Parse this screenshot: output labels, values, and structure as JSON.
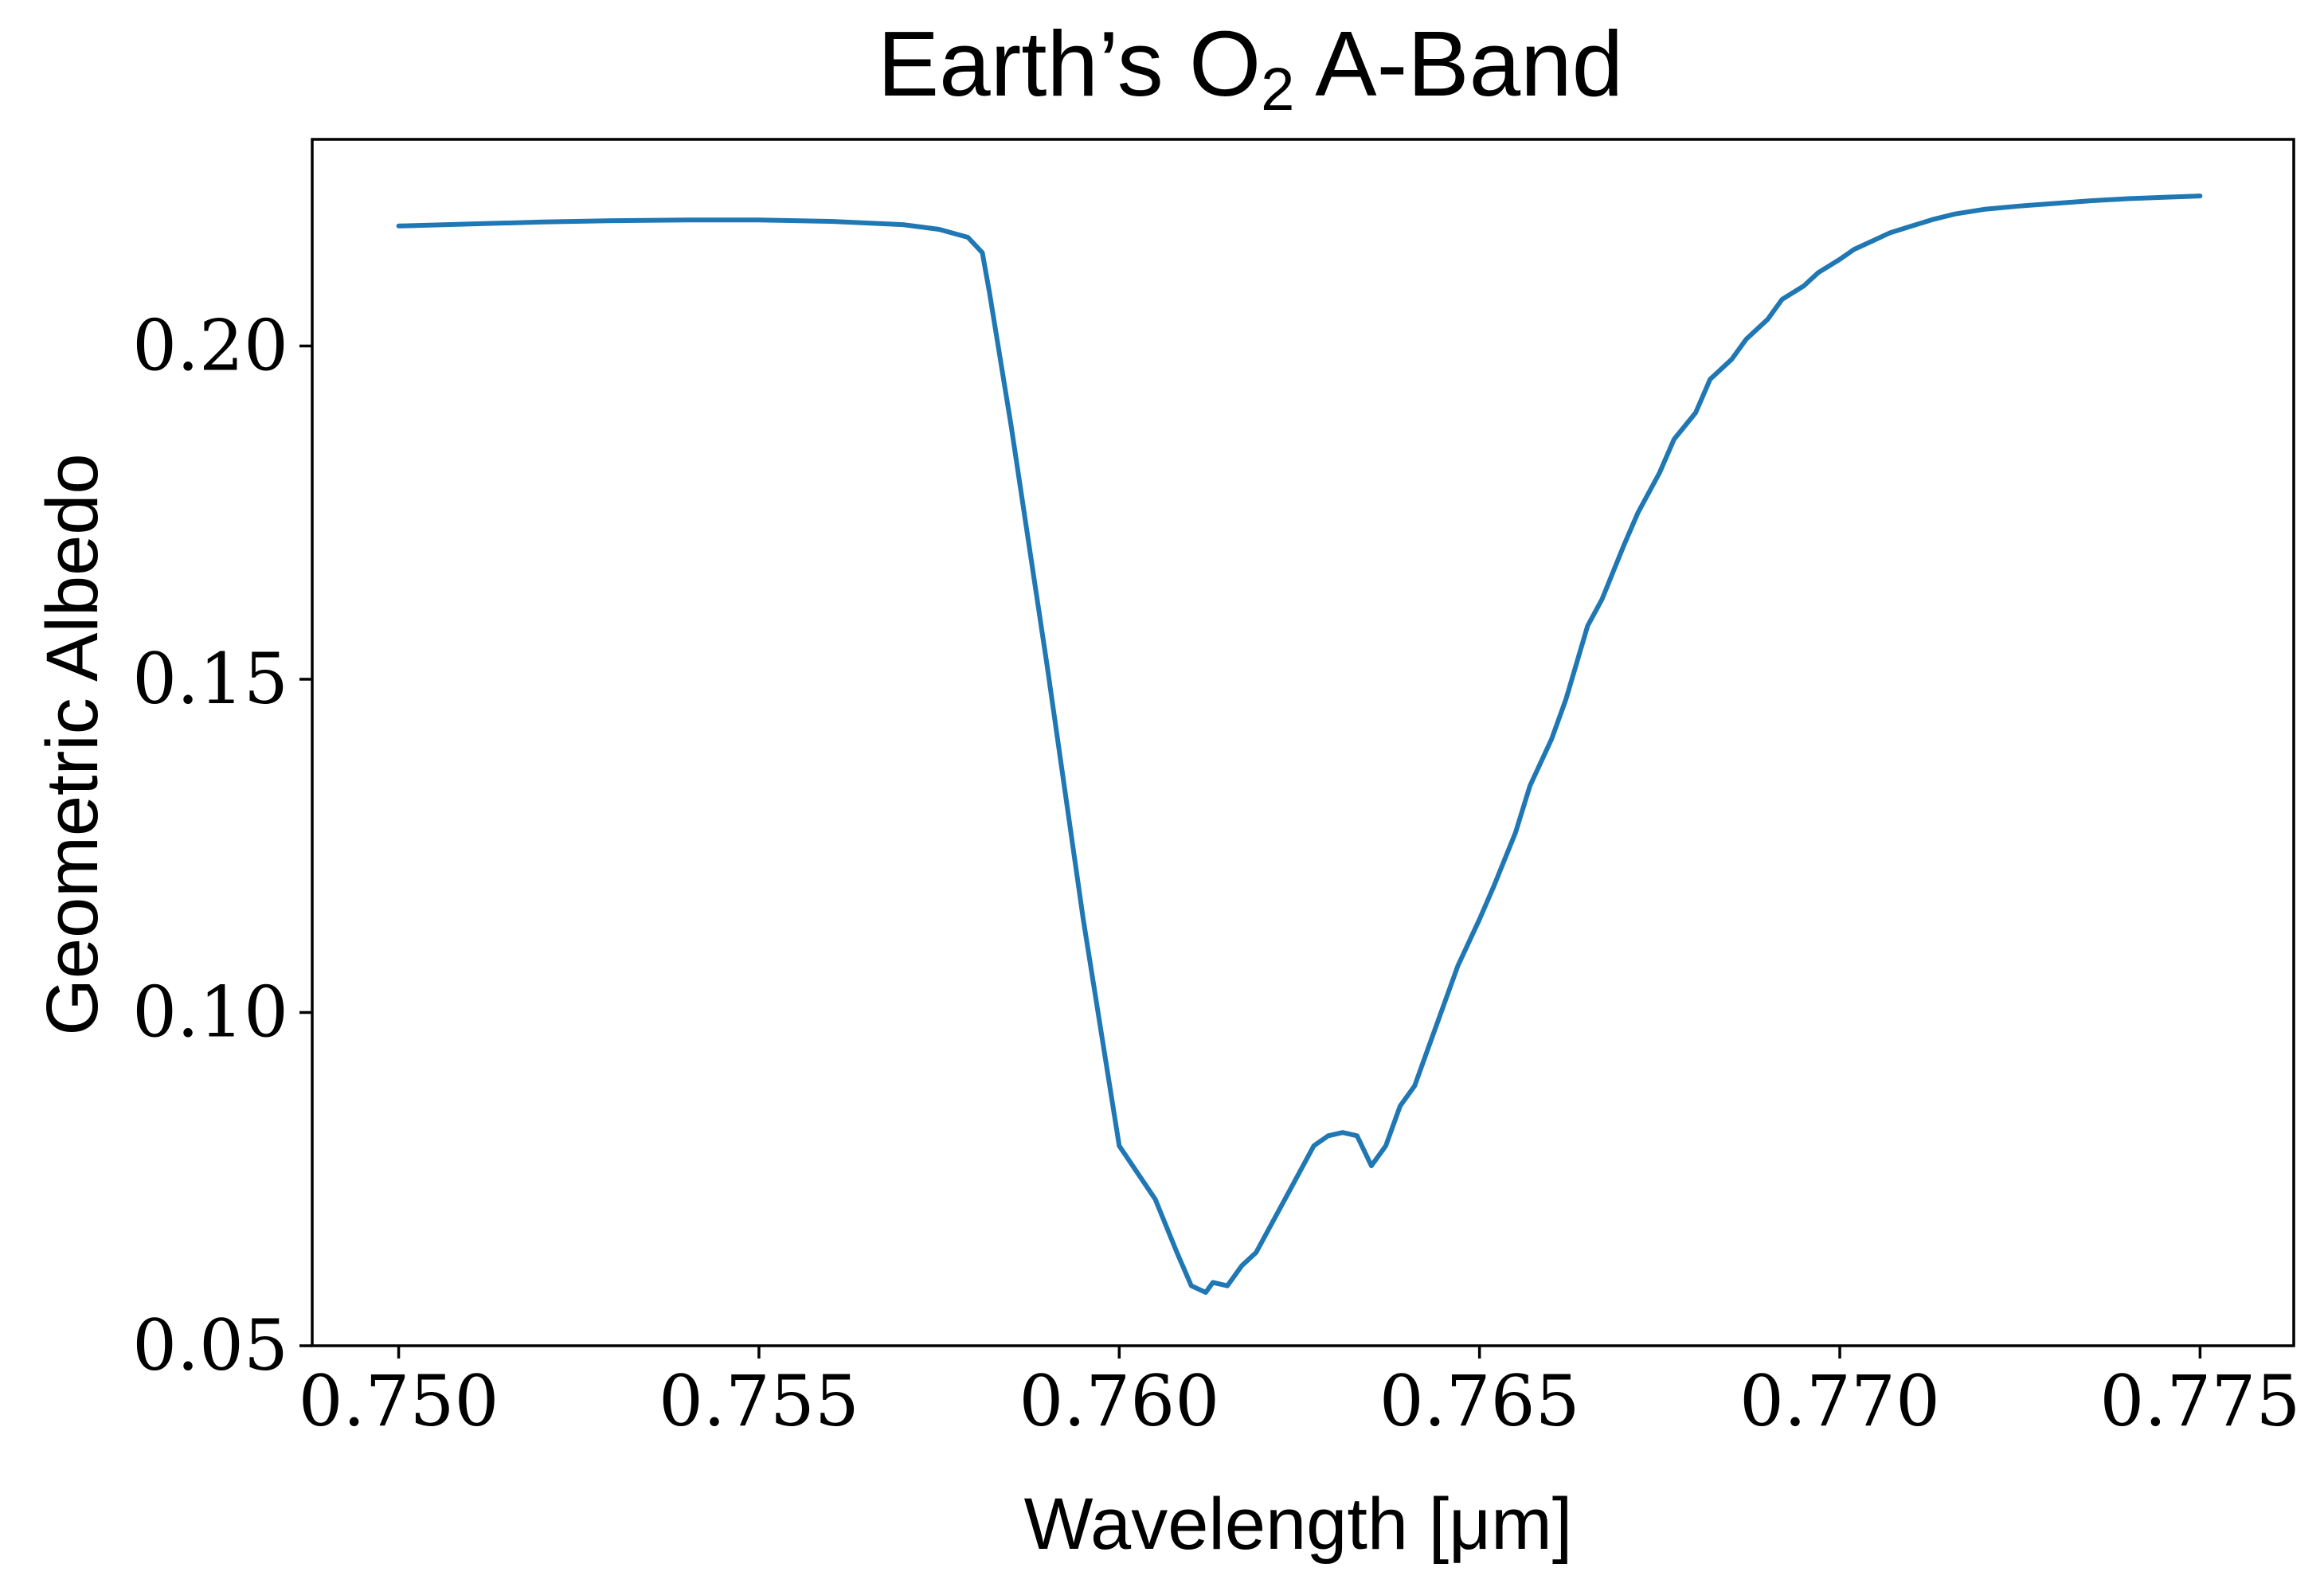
{
  "chart_data": {
    "type": "line",
    "title_main": "Earth’s O",
    "title_sub": "2",
    "title_end": " A-Band",
    "xlabel": "Wavelength [μm]",
    "ylabel": "Geometric Albedo",
    "xlim": [
      0.7488,
      0.7763
    ],
    "ylim": [
      0.05,
      0.231
    ],
    "xticks": [
      0.75,
      0.755,
      0.76,
      0.765,
      0.77,
      0.775
    ],
    "xtick_labels": [
      "0.750",
      "0.755",
      "0.760",
      "0.765",
      "0.770",
      "0.775"
    ],
    "yticks": [
      0.05,
      0.1,
      0.15,
      0.2
    ],
    "ytick_labels": [
      "0.05",
      "0.10",
      "0.15",
      "0.20"
    ],
    "grid": false,
    "color": "#1f77b4",
    "x": [
      0.75,
      0.751,
      0.752,
      0.753,
      0.754,
      0.755,
      0.756,
      0.757,
      0.7575,
      0.7579,
      0.7581,
      0.7582,
      0.7585,
      0.759,
      0.7595,
      0.76,
      0.7605,
      0.7608,
      0.761,
      0.7612,
      0.7613,
      0.7615,
      0.7617,
      0.7619,
      0.7621,
      0.7623,
      0.7625,
      0.7627,
      0.7629,
      0.7631,
      0.7633,
      0.7635,
      0.7637,
      0.7639,
      0.7641,
      0.7643,
      0.7645,
      0.7647,
      0.765,
      0.7652,
      0.7655,
      0.7657,
      0.766,
      0.7662,
      0.7665,
      0.7667,
      0.767,
      0.7672,
      0.7675,
      0.7677,
      0.768,
      0.7682,
      0.7685,
      0.7687,
      0.769,
      0.7692,
      0.7695,
      0.7697,
      0.77,
      0.7702,
      0.7705,
      0.7707,
      0.771,
      0.7713,
      0.7716,
      0.772,
      0.7725,
      0.773,
      0.7735,
      0.774,
      0.7745,
      0.775
    ],
    "y": [
      0.218,
      0.2183,
      0.2186,
      0.2188,
      0.2189,
      0.2189,
      0.2187,
      0.2182,
      0.2175,
      0.2163,
      0.214,
      0.208,
      0.188,
      0.152,
      0.114,
      0.08,
      0.072,
      0.064,
      0.059,
      0.058,
      0.0595,
      0.059,
      0.062,
      0.064,
      0.068,
      0.072,
      0.076,
      0.08,
      0.0815,
      0.082,
      0.0815,
      0.077,
      0.08,
      0.086,
      0.089,
      0.095,
      0.101,
      0.107,
      0.114,
      0.119,
      0.127,
      0.134,
      0.141,
      0.147,
      0.158,
      0.162,
      0.17,
      0.175,
      0.181,
      0.186,
      0.19,
      0.195,
      0.198,
      0.201,
      0.204,
      0.207,
      0.209,
      0.211,
      0.213,
      0.2145,
      0.216,
      0.217,
      0.218,
      0.219,
      0.2198,
      0.2205,
      0.221,
      0.2214,
      0.2218,
      0.2221,
      0.2223,
      0.2225
    ]
  }
}
